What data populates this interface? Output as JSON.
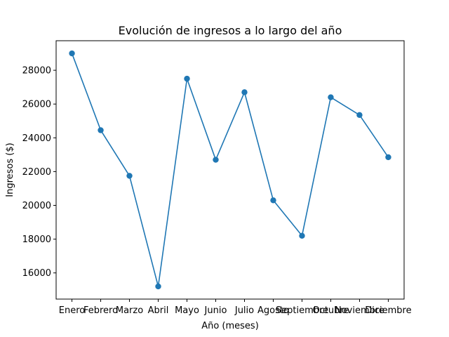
{
  "chart_data": {
    "type": "line",
    "title": "Evolución de ingresos a lo largo del año",
    "xlabel": "Año (meses)",
    "ylabel": "Ingresos ($)",
    "categories": [
      "Enero",
      "Febrero",
      "Marzo",
      "Abril",
      "Mayo",
      "Junio",
      "Julio",
      "Agosto",
      "Septiembre",
      "Octubre",
      "Noviembre",
      "Diciembre"
    ],
    "series": [
      {
        "values": [
          29000,
          24450,
          21750,
          15200,
          27500,
          22700,
          26700,
          20300,
          18200,
          26400,
          25350,
          22850
        ],
        "color": "#1f77b4",
        "marker": "circle"
      }
    ],
    "ylim": [
      14450,
      29750
    ],
    "yticks": [
      16000,
      18000,
      20000,
      22000,
      24000,
      26000,
      28000
    ],
    "grid": false,
    "legend": "none"
  }
}
